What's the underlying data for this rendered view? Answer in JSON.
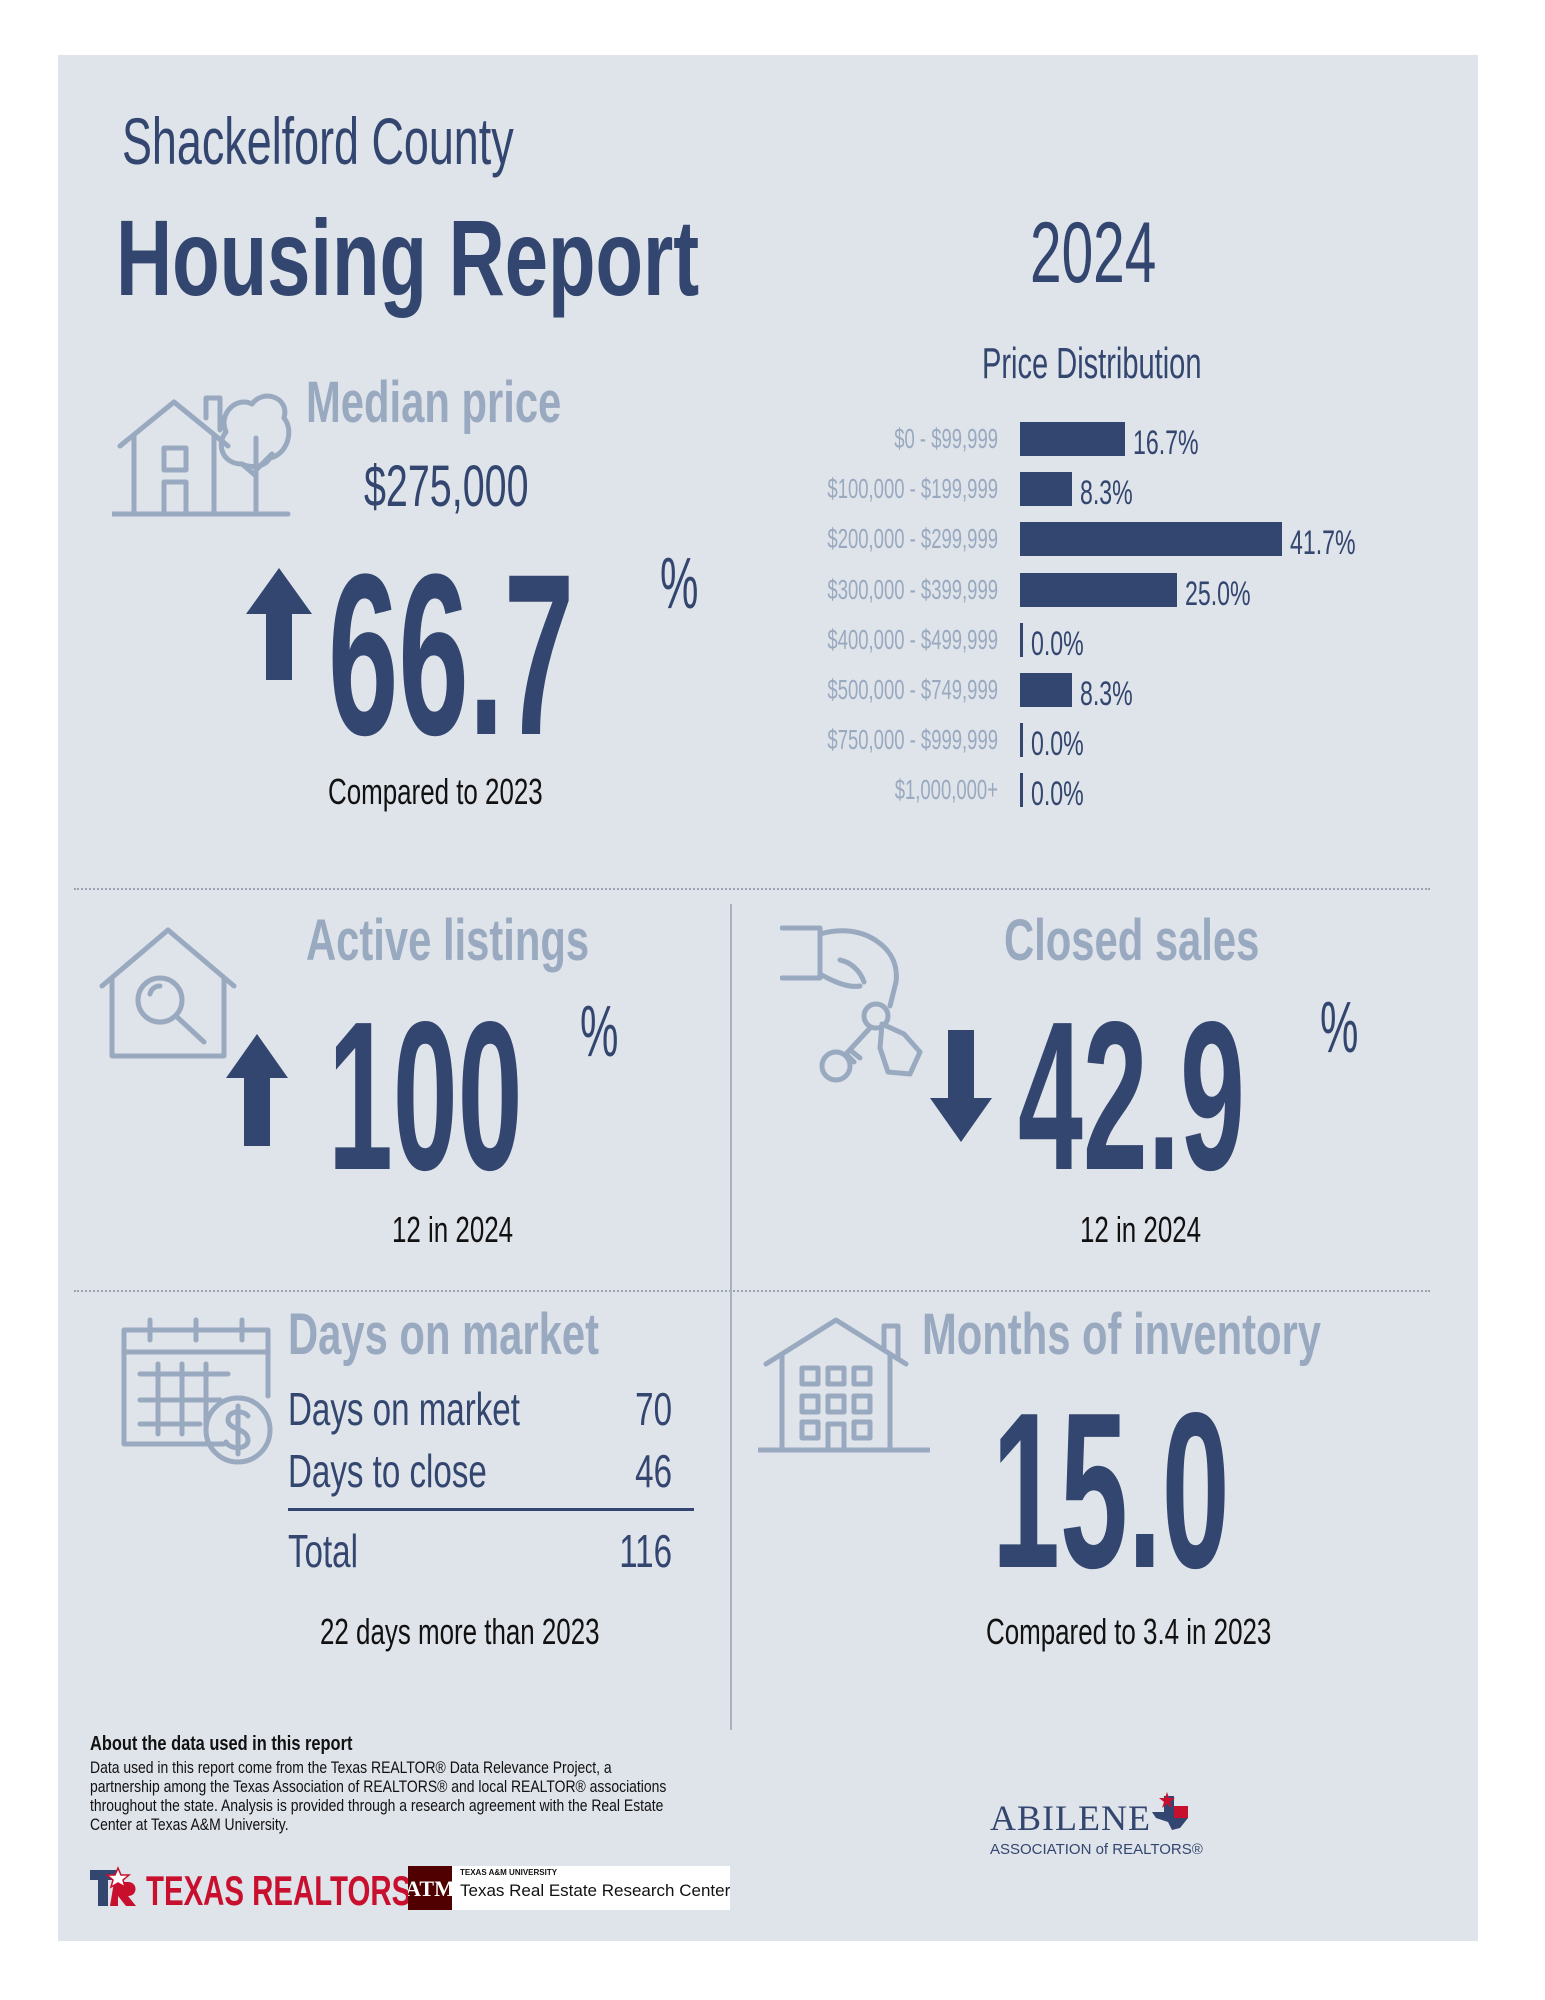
{
  "header": {
    "county": "Shackelford County",
    "title": "Housing Report",
    "year": "2024"
  },
  "median_price": {
    "title": "Median price",
    "value": "$275,000",
    "change": "66.7",
    "unit": "%",
    "direction": "up",
    "caption": "Compared to 2023"
  },
  "price_distribution": {
    "title": "Price Distribution",
    "chart_data": {
      "type": "bar",
      "orientation": "horizontal",
      "title": "Price Distribution",
      "categories": [
        "$0 - $99,999",
        "$100,000 - $199,999",
        "$200,000 - $299,999",
        "$300,000 - $399,999",
        "$400,000 - $499,999",
        "$500,000 - $749,999",
        "$750,000 - $999,999",
        "$1,000,000+"
      ],
      "values": [
        16.7,
        8.3,
        41.7,
        25.0,
        0.0,
        8.3,
        0.0,
        0.0
      ],
      "labels": [
        "16.7%",
        "8.3%",
        "41.7%",
        "25.0%",
        "0.0%",
        "8.3%",
        "0.0%",
        "0.0%"
      ],
      "unit": "%"
    }
  },
  "active_listings": {
    "title": "Active listings",
    "change": "100",
    "unit": "%",
    "direction": "up",
    "caption": "12 in 2024"
  },
  "closed_sales": {
    "title": "Closed sales",
    "change": "42.9",
    "unit": "%",
    "direction": "down",
    "caption": "12 in 2024"
  },
  "days_on_market": {
    "title": "Days on market",
    "rows": [
      {
        "label": "Days on market",
        "value": "70"
      },
      {
        "label": "Days to close",
        "value": "46"
      }
    ],
    "total_label": "Total",
    "total_value": "116",
    "caption": "22 days more than 2023"
  },
  "months_inventory": {
    "title": "Months of inventory",
    "value": "15.0",
    "caption": "Compared to 3.4 in 2023"
  },
  "about": {
    "title": "About the data used in this report",
    "body": "Data used in this report come from the Texas REALTOR® Data Relevance Project, a partnership among the Texas Association of REALTORS® and local REALTOR® associations throughout the state. Analysis is provided through a research agreement with the Real Estate Center at Texas A&M University."
  },
  "logos": {
    "texas_realtors": "TEXAS REALTORS",
    "tamu_small": "TEXAS A&M UNIVERSITY",
    "tamu_center": "Texas Real Estate Research Center",
    "abilene_line1": "ABILENE",
    "abilene_line2": "ASSOCIATION of REALTORS®"
  },
  "colors": {
    "navy": "#33466f",
    "light_blue": "#99a9bf",
    "panel": "#dfe3ea",
    "red": "#c8102e",
    "maroon": "#500000"
  }
}
